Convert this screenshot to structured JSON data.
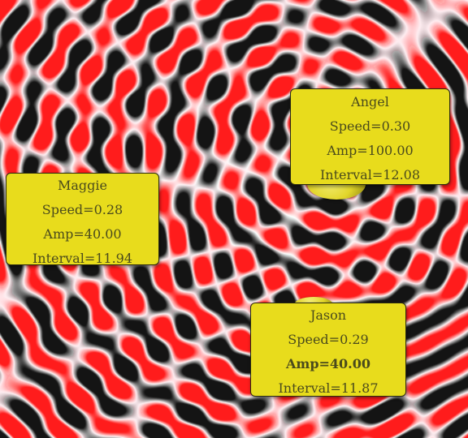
{
  "scene": {
    "colors": {
      "red": "#ff1c1c",
      "black": "#141414",
      "white": "#ffffff",
      "box": "#e8dc1c",
      "box_text": "#4a4a1c"
    }
  },
  "emitters": [
    {
      "name": "Angel",
      "speed_text": "Speed=0.30",
      "amp_text": "Amp=100.00",
      "interval_text": "Interval=12.08",
      "speed": 0.3,
      "amp": 100.0,
      "interval": 12.08
    },
    {
      "name": "Maggie",
      "speed_text": "Speed=0.28",
      "amp_text": "Amp=40.00",
      "interval_text": "Interval=11.94",
      "speed": 0.28,
      "amp": 40.0,
      "interval": 11.94
    },
    {
      "name": "Jason",
      "speed_text": "Speed=0.29",
      "amp_text": "Amp=40.00",
      "interval_text": "Interval=11.87",
      "speed": 0.29,
      "amp": 40.0,
      "interval": 11.87
    }
  ]
}
